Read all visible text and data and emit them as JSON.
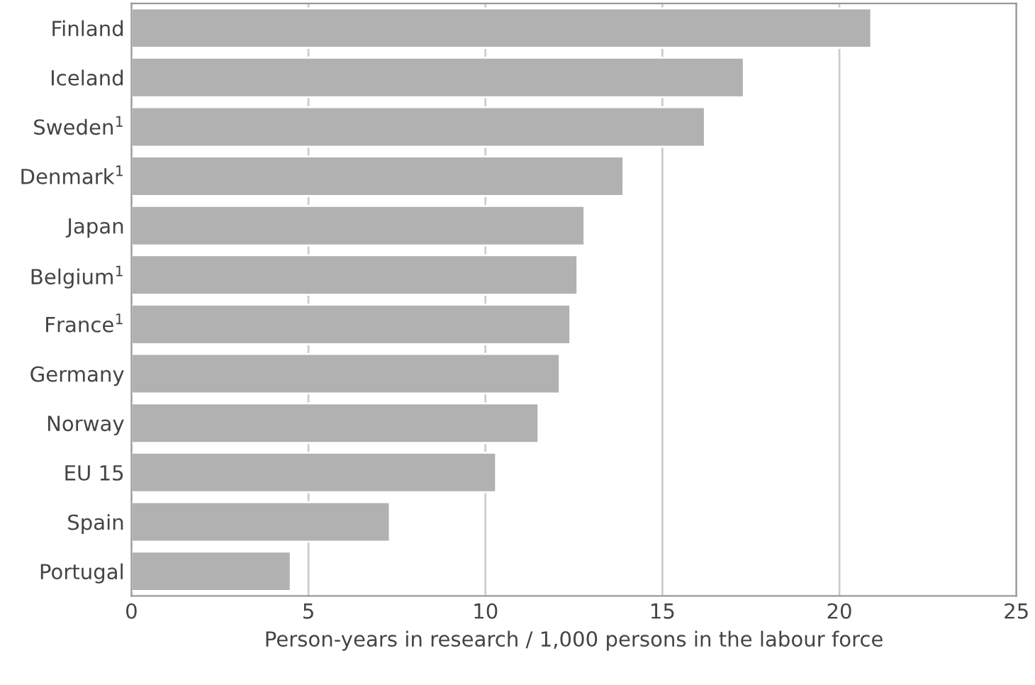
{
  "chart_data": {
    "type": "bar",
    "orientation": "horizontal",
    "categories": [
      "Finland",
      "Iceland",
      "Sweden$^{1}$",
      "Denmark$^{1}$",
      "Japan",
      "Belgium$^{1}$",
      "France$^{1}$",
      "Germany",
      "Norway",
      "EU 15",
      "Spain",
      "Portugal"
    ],
    "values": [
      20.9,
      17.3,
      16.2,
      13.9,
      12.8,
      12.6,
      12.4,
      12.1,
      11.5,
      10.3,
      7.3,
      4.5
    ],
    "color": "#b1b1b1",
    "xlabel": "Person-years in research / 1,000 persons in the labour force",
    "xlim": [
      0,
      25
    ],
    "xticks": [
      0,
      5,
      10,
      15,
      20,
      25
    ],
    "grid": "x"
  }
}
